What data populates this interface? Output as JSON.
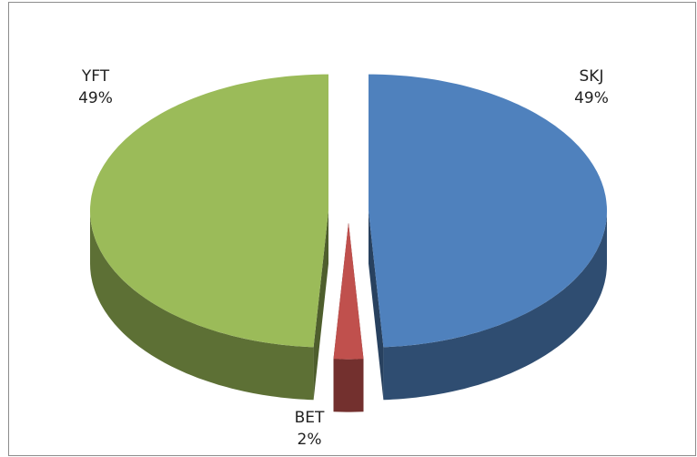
{
  "chart_data": {
    "type": "pie3d",
    "categories": [
      "SKJ",
      "BET",
      "YFT"
    ],
    "values": [
      49,
      2,
      49
    ],
    "value_labels": [
      "49%",
      "2%",
      "49%"
    ],
    "colors": [
      "#4f81bd",
      "#c0504d",
      "#9bbb59"
    ],
    "exploded": true
  }
}
